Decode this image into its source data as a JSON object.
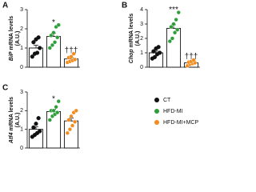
{
  "chart_data": [
    {
      "type": "bar",
      "panel": "A",
      "gene": "BiP",
      "y_label": "mRNA levels",
      "unit": "(A.U.)",
      "values": [
        1.0,
        1.6,
        0.43
      ],
      "errors": [
        0.15,
        0.17,
        0.06
      ],
      "points": [
        [
          0.55,
          0.7,
          0.75,
          1.0,
          1.3,
          1.45,
          1.55
        ],
        [
          1.0,
          1.15,
          1.3,
          1.55,
          1.65,
          1.8,
          2.1,
          2.2
        ],
        [
          0.25,
          0.3,
          0.35,
          0.4,
          0.5,
          0.55,
          0.7
        ]
      ],
      "annotations": [
        null,
        "*",
        "†††"
      ],
      "ylim": [
        0,
        3
      ],
      "yticks": [
        0,
        1,
        2,
        3
      ]
    },
    {
      "type": "bar",
      "panel": "B",
      "gene": "Chop",
      "y_label": "mRNA levels",
      "unit": "(A.U.)",
      "values": [
        1.0,
        2.7,
        0.3
      ],
      "errors": [
        0.12,
        0.25,
        0.05
      ],
      "points": [
        [
          0.6,
          0.7,
          0.9,
          1.0,
          1.1,
          1.3,
          1.4
        ],
        [
          1.8,
          2.0,
          2.4,
          2.6,
          2.8,
          3.0,
          3.3,
          3.8
        ],
        [
          0.1,
          0.2,
          0.25,
          0.3,
          0.35,
          0.4,
          0.5
        ]
      ],
      "annotations": [
        null,
        "***",
        "†††"
      ],
      "ylim": [
        0,
        4
      ],
      "yticks": [
        0,
        1,
        2,
        3,
        4
      ]
    },
    {
      "type": "bar",
      "panel": "C",
      "gene": "Atf4",
      "y_label": "mRNA levels",
      "unit": "(A.U.)",
      "values": [
        1.0,
        1.95,
        1.45
      ],
      "errors": [
        0.13,
        0.12,
        0.15
      ],
      "points": [
        [
          0.6,
          0.7,
          0.8,
          0.9,
          1.1,
          1.3,
          1.6
        ],
        [
          1.5,
          1.7,
          1.8,
          1.9,
          2.0,
          2.0,
          2.2,
          2.5
        ],
        [
          0.8,
          1.0,
          1.2,
          1.4,
          1.5,
          1.7,
          1.9,
          2.0
        ]
      ],
      "annotations": [
        null,
        "*",
        null
      ],
      "ylim": [
        0,
        3
      ],
      "yticks": [
        0,
        1,
        2,
        3
      ]
    }
  ],
  "legend": [
    {
      "name": "CT",
      "color": "#111111"
    },
    {
      "name": "HFD-MI",
      "color": "#2e9e3a"
    },
    {
      "name": "HFD-MI+MCP",
      "color": "#f28c1e"
    }
  ]
}
